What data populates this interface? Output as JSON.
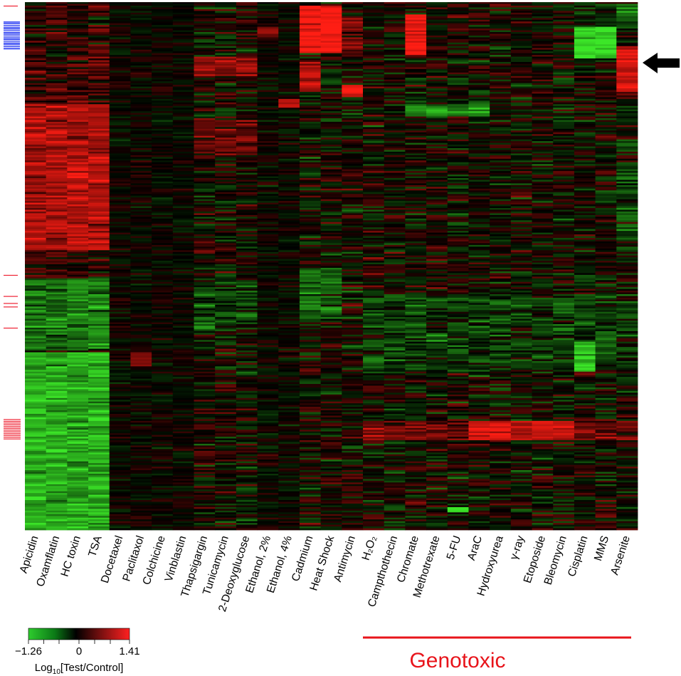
{
  "chart_data": {
    "type": "heatmap",
    "columns": [
      "Apicidin",
      "Oxamflatin",
      "HC toxin",
      "TSA",
      "Docetaxel",
      "Paclitaxol",
      "Colchicine",
      "Vinblastin",
      "Thapsigargin",
      "Tunicamycin",
      "2-Deoxyglucose",
      "Ethanol, 2%",
      "Ethanol, 4%",
      "Cadmium",
      "Heat Shock",
      "Antimycin",
      "H₂O₂",
      "Campthothecin",
      "Chromate",
      "Methotrexate",
      "5-FU",
      "AraC",
      "Hydroxyurea",
      "γ-ray",
      "Etoposide",
      "Bleomycin",
      "Cisplatin",
      "MMS",
      "Arsenite"
    ],
    "colorscale": {
      "min": -1.26,
      "max": 1.41,
      "tick_labels": [
        "−1.26",
        "0",
        "1.41"
      ],
      "title_main": "Log",
      "title_sub": "10",
      "title_rest": "[Test/Control]",
      "low_color": "#2ecc2e",
      "mid_color": "#000000",
      "high_color": "#ff2020"
    },
    "groups": [
      {
        "label": "Genotoxic",
        "first_column": "H₂O₂",
        "last_column": "Arsenite",
        "color": "#e8141b"
      }
    ],
    "row_markers": {
      "blue_color": "#2233ee",
      "red_color": "#ee2233"
    },
    "annotations": [
      {
        "type": "arrow",
        "pointing": "left",
        "color": "#000000"
      }
    ]
  }
}
